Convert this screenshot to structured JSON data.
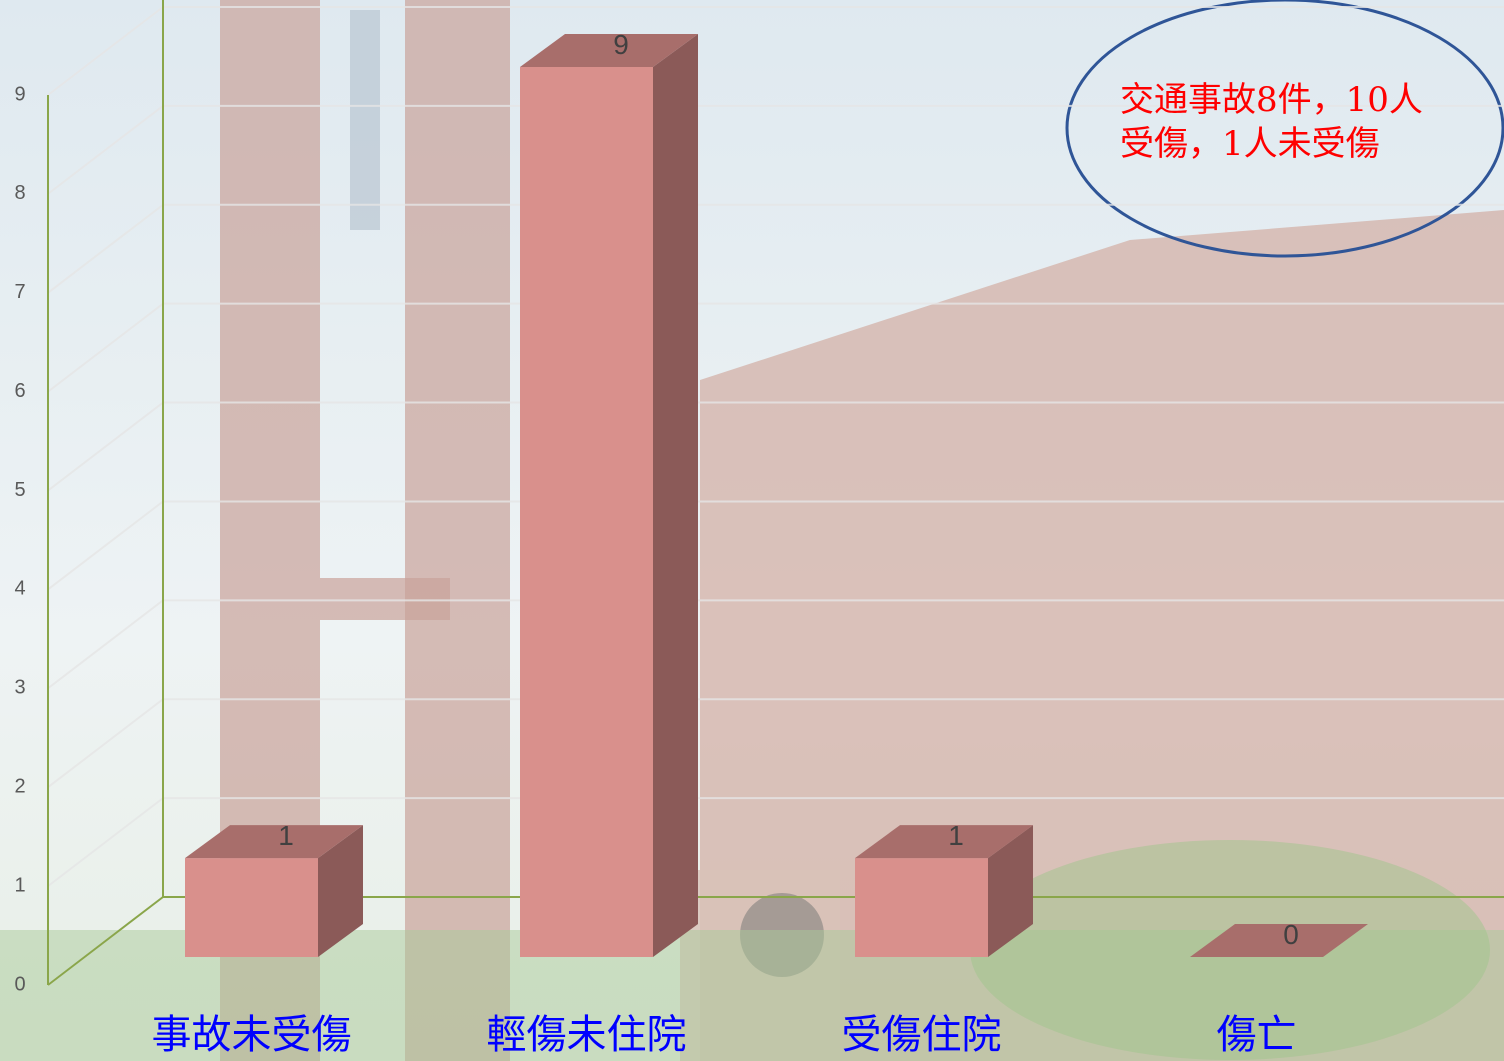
{
  "chart_data": {
    "type": "bar3d",
    "categories": [
      "事故未受傷",
      "輕傷未住院",
      "受傷住院",
      "傷亡"
    ],
    "values": [
      1,
      9,
      1,
      0
    ],
    "color": "#d9908c",
    "ylim": [
      0,
      9
    ],
    "yticks": [
      0,
      1,
      2,
      3,
      4,
      5,
      6,
      7,
      8,
      9
    ],
    "grid": true,
    "annotation": "交通事故8件，10人受傷，1人未受傷"
  }
}
